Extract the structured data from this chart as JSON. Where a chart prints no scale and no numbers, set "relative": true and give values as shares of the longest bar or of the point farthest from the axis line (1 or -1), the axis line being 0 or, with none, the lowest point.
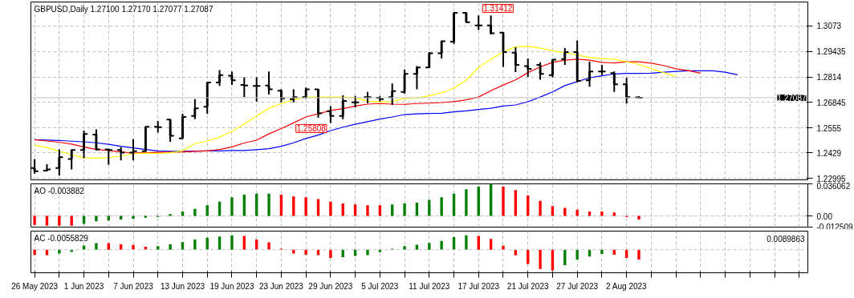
{
  "chart_data": [
    {
      "type": "candlestick",
      "title": "GBPUSD,Daily 1.27100 1.27170 1.27077 1.27087",
      "color": "#000000",
      "categories": [
        "26 May 2023",
        null,
        null,
        null,
        "1 Jun 2023",
        null,
        null,
        null,
        "7 Jun 2023",
        null,
        null,
        null,
        "13 Jun 2023",
        null,
        null,
        null,
        "19 Jun 2023",
        null,
        null,
        null,
        "23 Jun 2023",
        null,
        null,
        null,
        "29 Jun 2023",
        null,
        null,
        null,
        "5 Jul 2023",
        null,
        null,
        null,
        "11 Jul 2023",
        null,
        null,
        null,
        "17 Jul 2023",
        null,
        null,
        null,
        "21 Jul 2023",
        null,
        null,
        null,
        "27 Jul 2023",
        null,
        null,
        null,
        "2 Aug 2023",
        null,
        null,
        null,
        null,
        null,
        null,
        null,
        null,
        null,
        null,
        null,
        null,
        null,
        null
      ],
      "ohlc": [
        [
          1.2352,
          1.2398,
          1.2323,
          1.2336
        ],
        [
          1.2339,
          1.2371,
          1.2335,
          1.2345
        ],
        [
          1.2352,
          1.2446,
          1.2313,
          1.2407
        ],
        [
          1.2398,
          1.2446,
          1.2345,
          1.2443
        ],
        [
          1.2443,
          1.2542,
          1.2402,
          1.2525
        ],
        [
          1.2522,
          1.2548,
          1.2441,
          1.2446
        ],
        [
          1.2446,
          1.245,
          1.2368,
          1.2443
        ],
        [
          1.2443,
          1.2459,
          1.2391,
          1.243
        ],
        [
          1.243,
          1.2498,
          1.2391,
          1.2437
        ],
        [
          1.2437,
          1.2561,
          1.2433,
          1.2561
        ],
        [
          1.2561,
          1.2591,
          1.2532,
          1.2559
        ],
        [
          1.2598,
          1.26,
          1.2485,
          1.2515
        ],
        [
          1.2502,
          1.2627,
          1.2502,
          1.2611
        ],
        [
          1.2616,
          1.2701,
          1.26,
          1.2655
        ],
        [
          1.2663,
          1.2786,
          1.2627,
          1.2786
        ],
        [
          1.2786,
          1.2849,
          1.2768,
          1.2823
        ],
        [
          1.282,
          1.2842,
          1.2773,
          1.2797
        ],
        [
          1.2773,
          1.2812,
          1.2712,
          1.277
        ],
        [
          1.2768,
          1.2812,
          1.2689,
          1.2768
        ],
        [
          1.277,
          1.2842,
          1.2725,
          1.2751
        ],
        [
          1.2744,
          1.2751,
          1.2685,
          1.2705
        ],
        [
          1.2701,
          1.2751,
          1.2685,
          1.2712
        ],
        [
          1.2712,
          1.276,
          1.2705,
          1.2751
        ],
        [
          1.2751,
          1.2753,
          1.2607,
          1.2629
        ],
        [
          1.264,
          1.2666,
          1.25808,
          1.2616
        ],
        [
          1.2616,
          1.2721,
          1.26,
          1.2692
        ],
        [
          1.2685,
          1.2718,
          1.2659,
          1.2685
        ],
        [
          1.2712,
          1.2738,
          1.2681,
          1.2712
        ],
        [
          1.2708,
          1.2718,
          1.2689,
          1.2701
        ],
        [
          1.2712,
          1.2781,
          1.2672,
          1.2742
        ],
        [
          1.2738,
          1.2852,
          1.2729,
          1.2829
        ],
        [
          1.2829,
          1.2869,
          1.2751,
          1.2862
        ],
        [
          1.2862,
          1.294,
          1.2859,
          1.2934
        ],
        [
          1.2934,
          1.2999,
          1.2908,
          1.2995
        ],
        [
          1.2993,
          1.3139,
          1.2982,
          1.3139
        ],
        [
          1.3139,
          1.31412,
          1.3091,
          1.3091
        ],
        [
          1.3075,
          1.3126,
          1.3052,
          1.3075
        ],
        [
          1.3075,
          1.3126,
          1.3029,
          1.3036
        ],
        [
          1.3039,
          1.3042,
          1.2865,
          1.294
        ],
        [
          1.2937,
          1.2964,
          1.2838,
          1.2875
        ],
        [
          1.2869,
          1.2908,
          1.2814,
          1.2855
        ],
        [
          1.2875,
          1.2888,
          1.28,
          1.2829
        ],
        [
          1.2823,
          1.2904,
          1.2812,
          1.2901
        ],
        [
          1.2904,
          1.296,
          1.2875,
          1.294
        ],
        [
          1.294,
          1.2999,
          1.2786,
          1.2794
        ],
        [
          1.2797,
          1.2891,
          1.2764,
          1.2842
        ],
        [
          1.2842,
          1.2875,
          1.2823,
          1.2842
        ],
        [
          1.2833,
          1.2842,
          1.2738,
          1.2777
        ],
        [
          1.2777,
          1.281,
          1.2679,
          1.2712
        ],
        [
          1.271,
          1.2717,
          1.27077,
          1.27087
        ],
        null,
        null,
        null,
        null,
        null,
        null,
        null,
        null,
        null,
        null,
        null,
        null,
        null
      ],
      "series": [
        {
          "type": "line",
          "color": "#0000ff",
          "values": [
            1.2496,
            1.2494,
            1.2492,
            1.2488,
            1.2485,
            1.248,
            1.2472,
            1.2462,
            1.2454,
            1.2446,
            1.2439,
            1.2437,
            1.2437,
            1.2438,
            1.2439,
            1.2439,
            1.2441,
            1.2441,
            1.2445,
            1.245,
            1.2462,
            1.248,
            1.2502,
            1.2519,
            1.2542,
            1.2559,
            1.2574,
            1.2587,
            1.26,
            1.2611,
            1.2623,
            1.2627,
            1.2629,
            1.263,
            1.2637,
            1.2642,
            1.2649,
            1.2655,
            1.2666,
            1.2672,
            1.2688,
            1.2712,
            1.2738,
            1.277,
            1.279,
            1.281,
            1.282,
            1.2829,
            1.2832,
            1.2832,
            1.2833,
            1.2838,
            1.2842,
            1.2845,
            1.2845,
            1.2845,
            1.2838,
            1.2825,
            null,
            null,
            null,
            null,
            null
          ]
        },
        {
          "type": "line",
          "color": "#ff0000",
          "values": [
            1.2496,
            1.2489,
            1.2483,
            1.2473,
            1.2459,
            1.2446,
            1.2441,
            1.2434,
            1.2428,
            1.243,
            1.2432,
            1.2433,
            1.2434,
            1.2437,
            1.2439,
            1.2446,
            1.2459,
            1.2479,
            1.2493,
            1.2525,
            1.2552,
            1.2581,
            1.2611,
            1.2627,
            1.2644,
            1.2653,
            1.2666,
            1.2676,
            1.2679,
            1.2676,
            1.2675,
            1.2679,
            1.2681,
            1.2684,
            1.2689,
            1.2698,
            1.2712,
            1.2744,
            1.2773,
            1.2799,
            1.2836,
            1.2865,
            1.2888,
            1.2899,
            1.2904,
            1.2899,
            1.2888,
            1.2885,
            1.2891,
            1.2891,
            1.2884,
            1.2872,
            1.2855,
            1.2846,
            1.2833,
            null,
            null,
            null,
            null,
            null,
            null,
            null,
            null
          ]
        },
        {
          "type": "line",
          "color": "#ffff00",
          "values": [
            1.2467,
            1.2456,
            1.2437,
            1.242,
            1.2404,
            1.2402,
            1.2404,
            1.2413,
            1.2424,
            1.2428,
            1.2426,
            1.243,
            1.2439,
            1.2476,
            1.2489,
            1.2509,
            1.2538,
            1.2574,
            1.2616,
            1.2655,
            1.2679,
            1.2698,
            1.2712,
            1.2712,
            1.2712,
            1.2712,
            1.2708,
            1.2692,
            1.2688,
            1.2689,
            1.2705,
            1.2708,
            1.2718,
            1.2734,
            1.2757,
            1.2797,
            1.2862,
            1.2904,
            1.294,
            1.2967,
            1.2969,
            1.296,
            1.2947,
            1.2937,
            1.2925,
            1.2912,
            1.2908,
            1.2904,
            1.2891,
            1.2878,
            1.2855,
            1.2836,
            1.2816,
            null,
            null,
            null,
            null,
            null,
            null,
            null,
            null,
            null,
            null
          ]
        }
      ],
      "ylim": [
        1.2292,
        1.3194
      ],
      "yticks": [
        1.22995,
        1.2429,
        1.2555,
        1.26845,
        1.2814,
        1.29435,
        1.3073
      ],
      "tick_labels": "y",
      "grid": true,
      "ref_lines": [
        {
          "axis": "y",
          "value": 1.27087,
          "label": "1.27087",
          "color": "#c0c0c0",
          "line_style": "solid"
        }
      ],
      "annotations": [
        {
          "text": "1.31412",
          "x": "17 Jul 2023",
          "y": 1.31412
        },
        {
          "text": "1.25808",
          "x": "29 Jun 2023",
          "y": 1.25808
        }
      ]
    },
    {
      "type": "bar",
      "title": "AO -0.003882",
      "categories": [
        "26 May 2023",
        null,
        null,
        null,
        "1 Jun 2023",
        null,
        null,
        null,
        "7 Jun 2023",
        null,
        null,
        null,
        "13 Jun 2023",
        null,
        null,
        null,
        "19 Jun 2023",
        null,
        null,
        null,
        "23 Jun 2023",
        null,
        null,
        null,
        "29 Jun 2023",
        null,
        null,
        null,
        "5 Jul 2023",
        null,
        null,
        null,
        "11 Jul 2023",
        null,
        null,
        null,
        "17 Jul 2023",
        null,
        null,
        null,
        "21 Jul 2023",
        null,
        null,
        null,
        "27 Jul 2023",
        null,
        null,
        null,
        "2 Aug 2023",
        null,
        null,
        null,
        null,
        null,
        null,
        null,
        null,
        null,
        null,
        null,
        null,
        null,
        null
      ],
      "values": [
        -0.01,
        -0.011,
        -0.011,
        -0.011,
        -0.009,
        -0.006,
        -0.005,
        -0.004,
        -0.003,
        -0.002,
        -0.001,
        0.002,
        0.005,
        0.008,
        0.012,
        0.016,
        0.021,
        0.024,
        0.025,
        0.025,
        0.024,
        0.022,
        0.021,
        0.019,
        0.016,
        0.014,
        0.013,
        0.012,
        0.012,
        0.013,
        0.014,
        0.015,
        0.018,
        0.021,
        0.025,
        0.03,
        0.033,
        0.036062,
        0.033,
        0.029,
        0.023,
        0.017,
        0.011,
        0.009,
        0.007,
        0.005,
        0.005,
        0.004,
        -0.001,
        -0.003882,
        null,
        null,
        null,
        null,
        null,
        null,
        null,
        null,
        null,
        null,
        null,
        null,
        null
      ],
      "colors": [
        "#ff0000",
        "#ff0000",
        "#ff0000",
        "#ff0000",
        "#008000",
        "#008000",
        "#008000",
        "#008000",
        "#008000",
        "#008000",
        "#008000",
        "#008000",
        "#008000",
        "#008000",
        "#008000",
        "#008000",
        "#008000",
        "#008000",
        "#008000",
        "#008000",
        "#ff0000",
        "#ff0000",
        "#ff0000",
        "#ff0000",
        "#ff0000",
        "#ff0000",
        "#ff0000",
        "#ff0000",
        "#ff0000",
        "#008000",
        "#008000",
        "#008000",
        "#008000",
        "#008000",
        "#008000",
        "#008000",
        "#008000",
        "#008000",
        "#ff0000",
        "#ff0000",
        "#ff0000",
        "#ff0000",
        "#ff0000",
        "#ff0000",
        "#ff0000",
        "#ff0000",
        "#ff0000",
        "#ff0000",
        "#ff0000",
        "#ff0000",
        null,
        null,
        null,
        null,
        null,
        null,
        null,
        null,
        null,
        null,
        null,
        null,
        null
      ],
      "ylim": [
        -0.012509,
        0.036062
      ],
      "yticks": [
        0.036062,
        {
          "value": 0,
          "label": "0.00"
        },
        -0.012509
      ],
      "tick_labels": "y",
      "grid": true
    },
    {
      "type": "bar",
      "title": "AC -0.0055829",
      "relative": true,
      "categories": [
        "26 May 2023",
        null,
        null,
        null,
        "1 Jun 2023",
        null,
        null,
        null,
        "7 Jun 2023",
        null,
        null,
        null,
        "13 Jun 2023",
        null,
        null,
        null,
        "19 Jun 2023",
        null,
        null,
        null,
        "23 Jun 2023",
        null,
        null,
        null,
        "29 Jun 2023",
        null,
        null,
        null,
        "5 Jul 2023",
        null,
        null,
        null,
        "11 Jul 2023",
        null,
        null,
        null,
        "17 Jul 2023",
        null,
        null,
        null,
        "21 Jul 2023",
        null,
        null,
        null,
        "27 Jul 2023",
        null,
        null,
        null,
        "2 Aug 2023",
        null,
        null,
        null,
        null,
        null,
        null,
        null,
        null,
        null,
        null,
        null,
        null,
        null,
        null
      ],
      "values": [
        -0.25,
        -0.26,
        -0.19,
        -0.11,
        0.2,
        0.32,
        0.32,
        0.26,
        0.23,
        0.15,
        0.17,
        0.26,
        0.37,
        0.5,
        0.58,
        0.64,
        0.7,
        0.67,
        0.5,
        0.36,
        0.05,
        -0.19,
        -0.24,
        -0.26,
        -0.4,
        -0.36,
        -0.3,
        -0.26,
        -0.12,
        0.05,
        0.17,
        0.24,
        0.33,
        0.43,
        0.61,
        0.7,
        0.67,
        0.52,
        0.19,
        -0.27,
        -0.69,
        -0.93,
        -1,
        -0.75,
        -0.48,
        -0.33,
        -0.2,
        -0.24,
        -0.4,
        -0.48,
        null,
        null,
        null,
        null,
        null,
        null,
        null,
        null,
        null,
        null,
        null,
        null,
        null
      ],
      "colors": [
        "#ff0000",
        "#ff0000",
        "#008000",
        "#008000",
        "#008000",
        "#008000",
        "#ff0000",
        "#ff0000",
        "#ff0000",
        "#ff0000",
        "#008000",
        "#008000",
        "#008000",
        "#008000",
        "#008000",
        "#008000",
        "#008000",
        "#ff0000",
        "#ff0000",
        "#ff0000",
        "#ff0000",
        "#ff0000",
        "#ff0000",
        "#ff0000",
        "#ff0000",
        "#008000",
        "#008000",
        "#008000",
        "#008000",
        "#008000",
        "#008000",
        "#008000",
        "#008000",
        "#008000",
        "#008000",
        "#008000",
        "#ff0000",
        "#ff0000",
        "#ff0000",
        "#ff0000",
        "#ff0000",
        "#ff0000",
        "#ff0000",
        "#008000",
        "#008000",
        "#008000",
        "#008000",
        "#ff0000",
        "#ff0000",
        "#ff0000",
        null,
        null,
        null,
        null,
        null,
        null,
        null,
        null,
        null,
        null,
        null,
        null,
        null
      ],
      "grid": "x",
      "annotations": [
        "0.0089863"
      ]
    }
  ]
}
